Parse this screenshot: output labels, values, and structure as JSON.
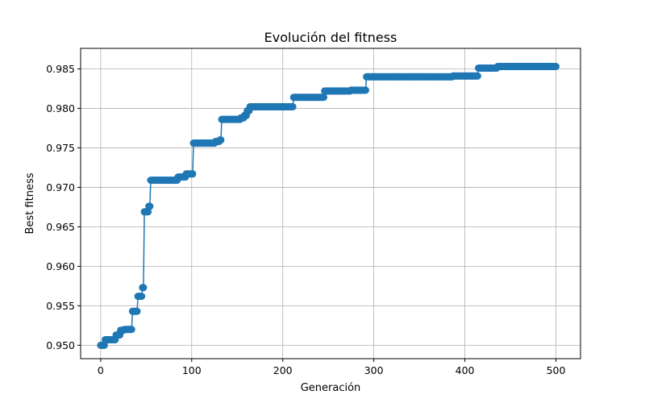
{
  "chart_data": {
    "type": "line",
    "title": "Evolución del fitness",
    "xlabel": "Generación",
    "ylabel": "Best fitness",
    "xlim": [
      -22,
      527
    ],
    "ylim": [
      0.9483,
      0.9876
    ],
    "grid": true,
    "marker": "circle",
    "colors": {
      "series": "#1f77b4",
      "grid": "#b0b0b0",
      "axis": "#000000"
    },
    "x_ticks": [
      {
        "value": 0,
        "label": "0"
      },
      {
        "value": 100,
        "label": "100"
      },
      {
        "value": 200,
        "label": "200"
      },
      {
        "value": 300,
        "label": "300"
      },
      {
        "value": 400,
        "label": "400"
      },
      {
        "value": 500,
        "label": "500"
      }
    ],
    "y_ticks": [
      {
        "value": 0.95,
        "label": "0.950"
      },
      {
        "value": 0.955,
        "label": "0.955"
      },
      {
        "value": 0.96,
        "label": "0.960"
      },
      {
        "value": 0.965,
        "label": "0.965"
      },
      {
        "value": 0.97,
        "label": "0.970"
      },
      {
        "value": 0.975,
        "label": "0.975"
      },
      {
        "value": 0.98,
        "label": "0.980"
      },
      {
        "value": 0.985,
        "label": "0.985"
      }
    ],
    "steps": [
      [
        0,
        0.95
      ],
      [
        5,
        0.9507
      ],
      [
        17,
        0.9513
      ],
      [
        22,
        0.9519
      ],
      [
        26,
        0.952
      ],
      [
        35,
        0.9543
      ],
      [
        41,
        0.9562
      ],
      [
        46,
        0.9573
      ],
      [
        48,
        0.9669
      ],
      [
        53,
        0.9676
      ],
      [
        55,
        0.9709
      ],
      [
        85,
        0.9713
      ],
      [
        94,
        0.9717
      ],
      [
        102,
        0.9756
      ],
      [
        126,
        0.9758
      ],
      [
        131,
        0.976
      ],
      [
        133,
        0.9786
      ],
      [
        154,
        0.9788
      ],
      [
        158,
        0.9791
      ],
      [
        161,
        0.9797
      ],
      [
        164,
        0.9802
      ],
      [
        212,
        0.9814
      ],
      [
        246,
        0.9822
      ],
      [
        275,
        0.9823
      ],
      [
        292,
        0.984
      ],
      [
        387,
        0.9841
      ],
      [
        415,
        0.9851
      ],
      [
        436,
        0.9853
      ],
      [
        500,
        0.9853
      ]
    ]
  }
}
